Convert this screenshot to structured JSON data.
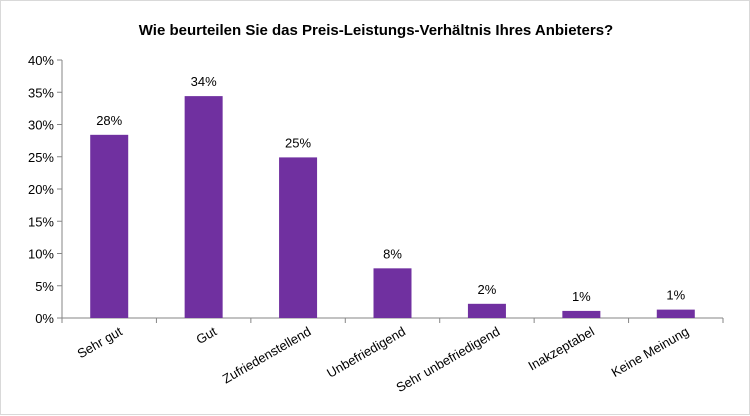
{
  "chart_data": {
    "type": "bar",
    "title": "Wie beurteilen Sie das Preis-Leistungs-Verhältnis Ihres Anbieters?",
    "categories": [
      "Sehr gut",
      "Gut",
      "Zufriedenstellend",
      "Unbefriedigend",
      "Sehr unbefriedigend",
      "Inakzeptabel",
      "Keine Meinung"
    ],
    "values": [
      28.4,
      34.4,
      24.9,
      7.7,
      2.2,
      1.1,
      1.3
    ],
    "data_labels": [
      "28%",
      "34%",
      "25%",
      "8%",
      "2%",
      "1%",
      "1%"
    ],
    "yticks": [
      "0%",
      "5%",
      "10%",
      "15%",
      "20%",
      "25%",
      "30%",
      "35%",
      "40%"
    ],
    "ylim": [
      0,
      40
    ],
    "bar_color": "#7030a0",
    "grid": false,
    "legend": "none"
  }
}
